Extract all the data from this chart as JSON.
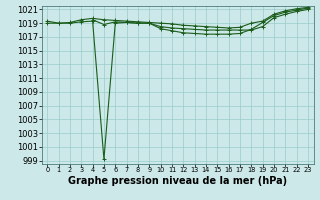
{
  "background_color": "#cce8e8",
  "grid_color": "#99cccc",
  "line_color": "#1a5c1a",
  "xlabel": "Graphe pression niveau de la mer (hPa)",
  "xlabel_fontsize": 7.0,
  "ylabel_fontsize": 6.0,
  "xlim": [
    -0.5,
    23.5
  ],
  "ylim": [
    998.5,
    1021.5
  ],
  "yticks": [
    999,
    1001,
    1003,
    1005,
    1007,
    1009,
    1011,
    1013,
    1015,
    1017,
    1019,
    1021
  ],
  "xticks": [
    0,
    1,
    2,
    3,
    4,
    5,
    6,
    7,
    8,
    9,
    10,
    11,
    12,
    13,
    14,
    15,
    16,
    17,
    18,
    19,
    20,
    21,
    22,
    23
  ],
  "series": [
    {
      "x": [
        0,
        1,
        2,
        3,
        4,
        5,
        6,
        7,
        8,
        9,
        10,
        11,
        12,
        13,
        14,
        15,
        16,
        17,
        18,
        19,
        20,
        21,
        22,
        23
      ],
      "y": [
        1019.0,
        1019.0,
        1019.0,
        1019.2,
        1019.3,
        999.2,
        1019.0,
        1019.1,
        1019.0,
        1019.0,
        1018.5,
        1018.3,
        1018.2,
        1018.1,
        1018.0,
        1018.0,
        1018.0,
        1018.0,
        1018.0,
        1018.5,
        1019.8,
        1020.3,
        1020.7,
        1021.0
      ],
      "marker": "+",
      "markersize": 3.5,
      "linewidth": 0.8
    },
    {
      "x": [
        0,
        1,
        2,
        3,
        4,
        5,
        6,
        7,
        8,
        9,
        10,
        11,
        12,
        13,
        14,
        15,
        16,
        17,
        18,
        19,
        20,
        21,
        22,
        23
      ],
      "y": [
        1019.3,
        1019.0,
        1019.1,
        1019.5,
        1019.7,
        1019.5,
        1019.4,
        1019.3,
        1019.2,
        1019.1,
        1019.0,
        1018.9,
        1018.7,
        1018.6,
        1018.5,
        1018.4,
        1018.3,
        1018.4,
        1019.0,
        1019.3,
        1020.3,
        1020.8,
        1021.1,
        1021.3
      ],
      "marker": "+",
      "markersize": 3.5,
      "linewidth": 0.8
    },
    {
      "x": [
        4,
        5,
        6,
        7,
        8,
        9,
        10,
        11,
        12,
        13,
        14,
        15,
        16,
        17,
        18,
        19,
        20,
        21,
        22,
        23
      ],
      "y": [
        1019.5,
        1018.8,
        1019.2,
        1019.1,
        1019.0,
        1019.0,
        1018.2,
        1017.9,
        1017.6,
        1017.5,
        1017.4,
        1017.4,
        1017.4,
        1017.5,
        1018.1,
        1019.1,
        1020.1,
        1020.6,
        1020.9,
        1021.2
      ],
      "marker": "+",
      "markersize": 3.5,
      "linewidth": 0.8
    }
  ]
}
